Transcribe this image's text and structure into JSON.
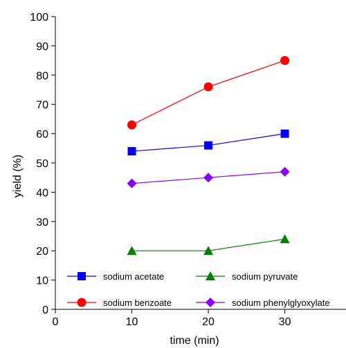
{
  "chart_data": {
    "type": "line",
    "title": "",
    "xlabel": "time (min)",
    "ylabel": "yield (%)",
    "xlim": [
      0,
      38
    ],
    "ylim": [
      0,
      100
    ],
    "x_ticks": [
      0,
      10,
      20,
      30
    ],
    "y_ticks": [
      0,
      10,
      20,
      30,
      40,
      50,
      60,
      70,
      80,
      90,
      100
    ],
    "grid": false,
    "legend_position": "bottom",
    "x": [
      10,
      20,
      30
    ],
    "series": [
      {
        "name": "sodium acetate",
        "values": [
          54,
          56,
          60
        ],
        "color": "#0000ff",
        "marker": "square"
      },
      {
        "name": "sodium benzoate",
        "values": [
          63,
          76,
          85
        ],
        "color": "#ff0000",
        "marker": "circle"
      },
      {
        "name": "sodium pyruvate",
        "values": [
          20,
          20,
          24
        ],
        "color": "#008000",
        "marker": "triangle"
      },
      {
        "name": "sodium phenylglyoxylate",
        "values": [
          43,
          45,
          47
        ],
        "color": "#8b00ff",
        "marker": "diamond"
      }
    ]
  }
}
